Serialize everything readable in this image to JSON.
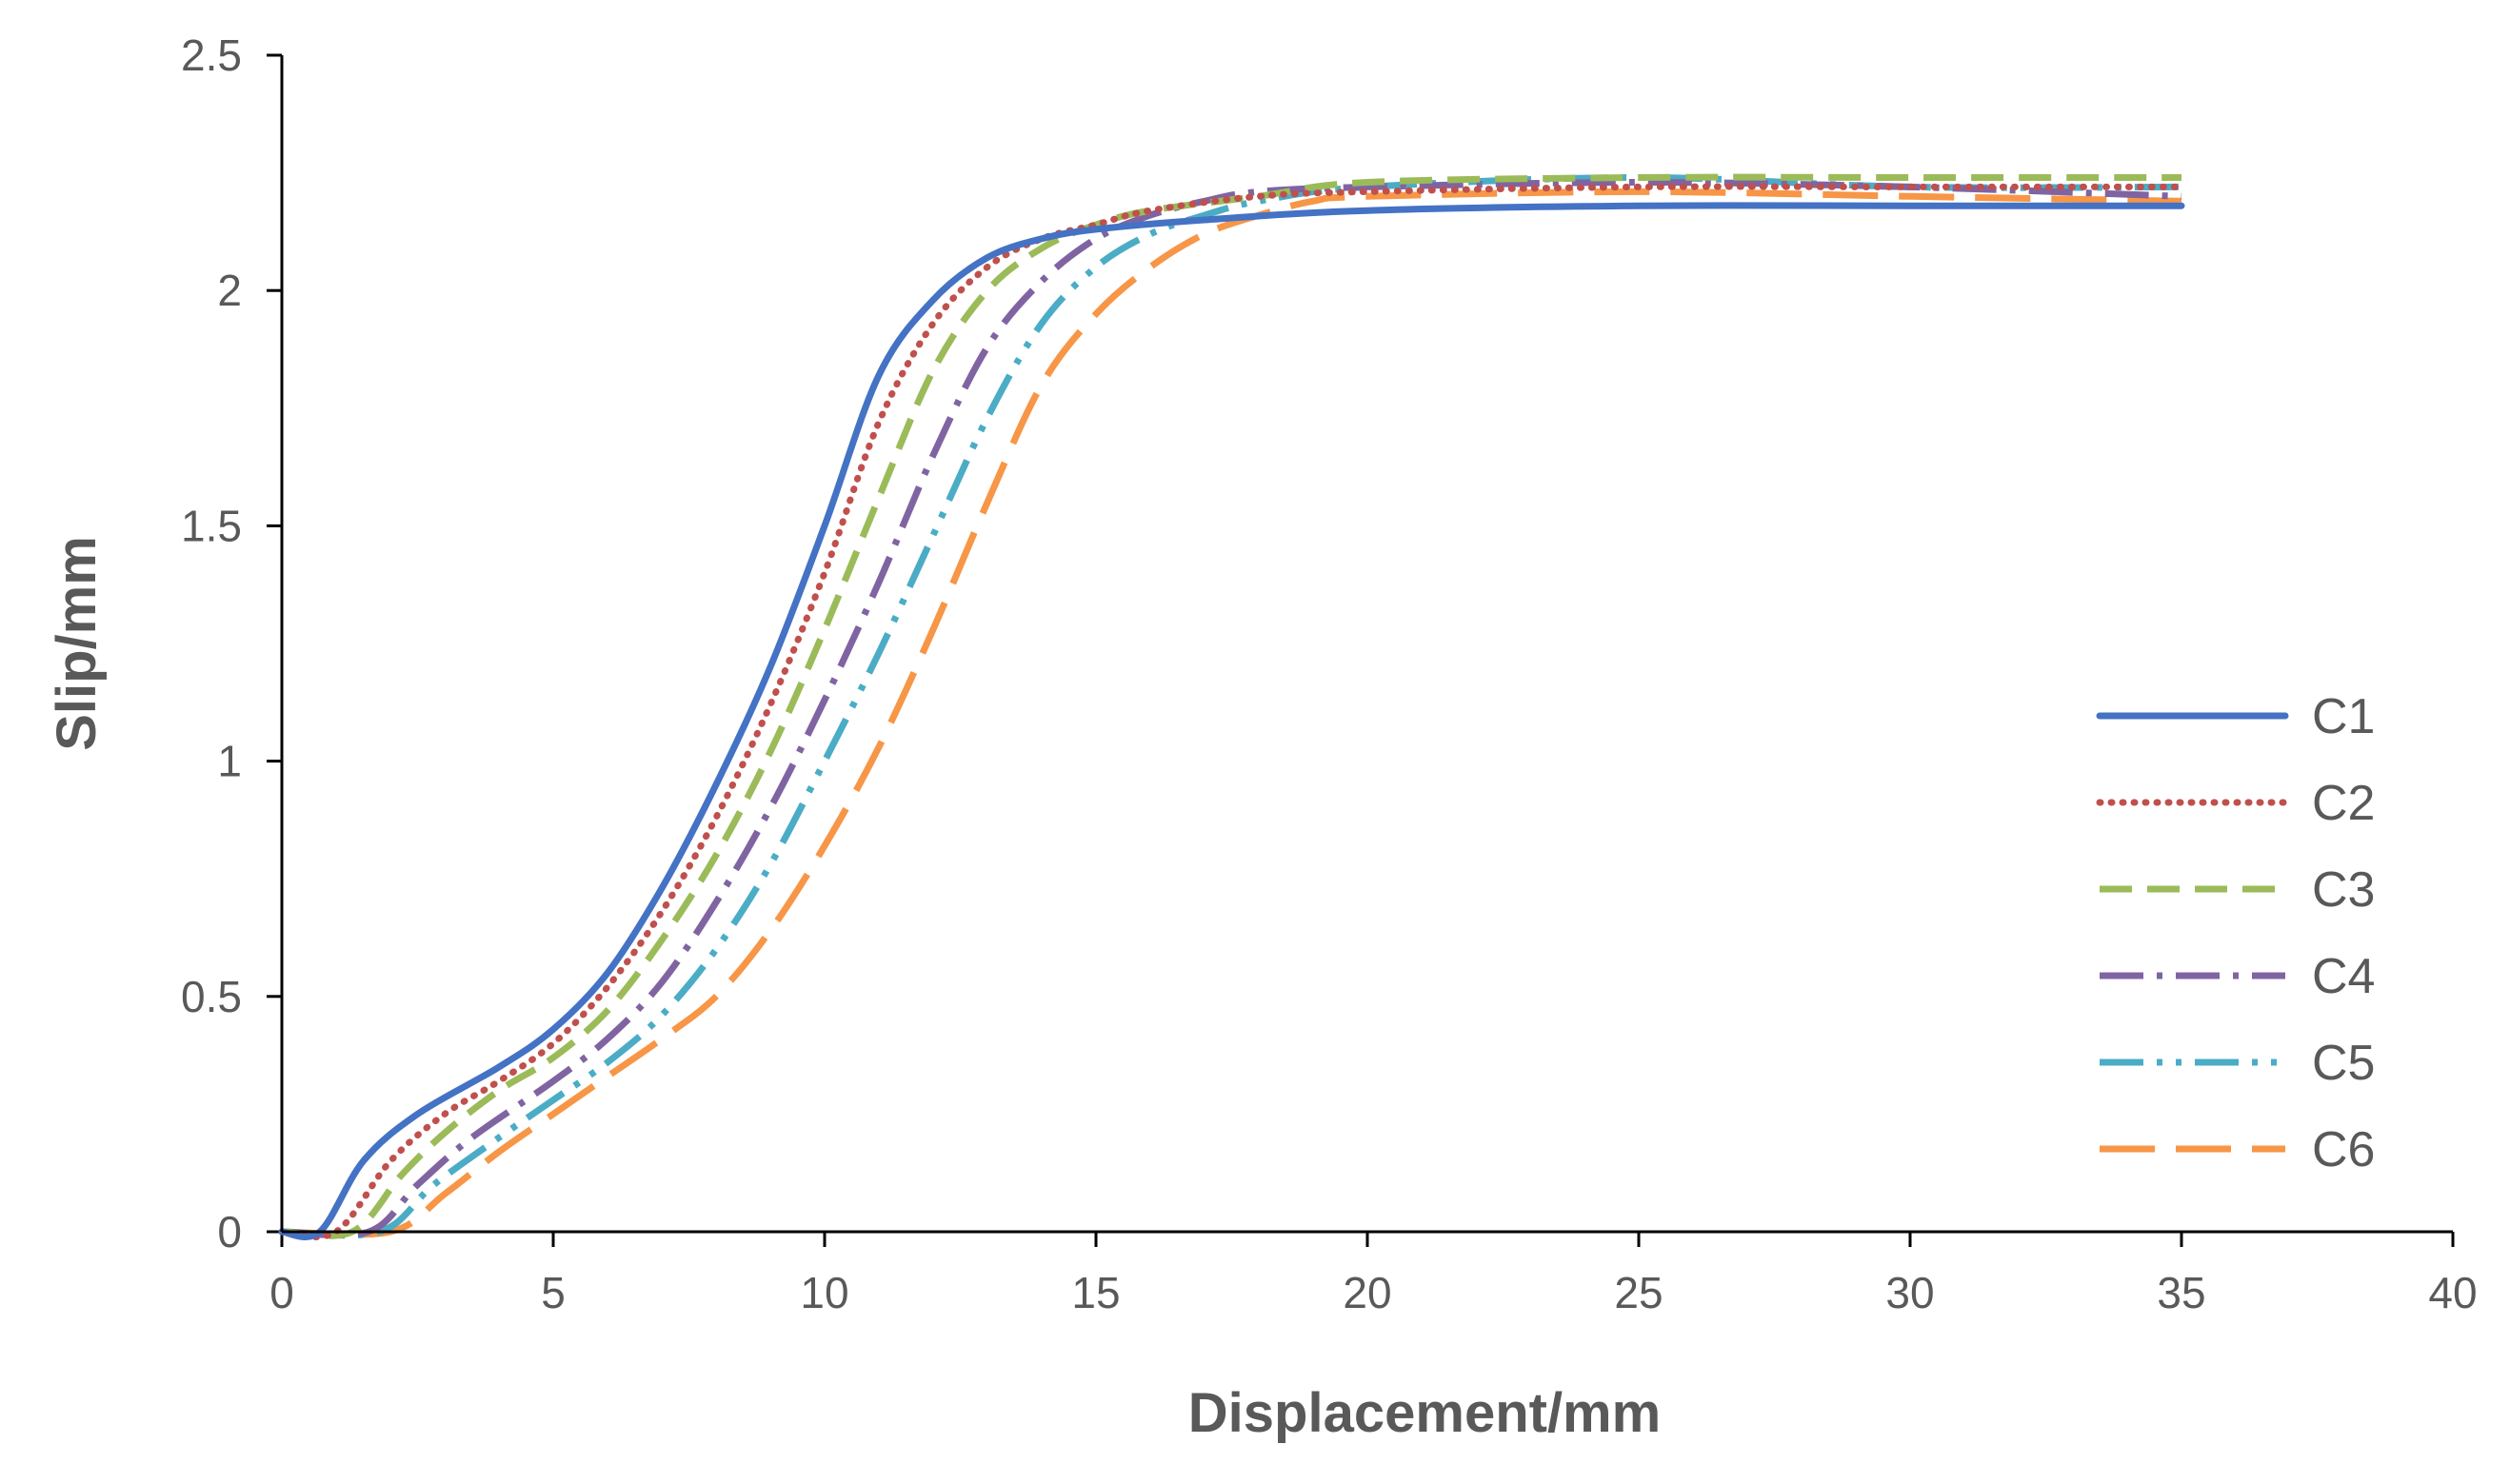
{
  "chart_data": {
    "type": "line",
    "title": "",
    "xlabel": "Displacement/mm",
    "ylabel": "Slip/mm",
    "xlim": [
      0,
      40
    ],
    "ylim": [
      0,
      2.5
    ],
    "xticks": [
      0,
      5,
      10,
      15,
      20,
      25,
      30,
      35,
      40
    ],
    "yticks": [
      0,
      0.5,
      1,
      1.5,
      2,
      2.5
    ],
    "xtick_labels": [
      "0",
      "5",
      "10",
      "15",
      "20",
      "25",
      "30",
      "35",
      "40"
    ],
    "ytick_labels": [
      "0",
      "0.5",
      "1",
      "1.5",
      "2",
      "2.5"
    ],
    "grid": false,
    "legend_position": "right",
    "series": [
      {
        "name": "C1",
        "color": "#4472C4",
        "dash": "solid",
        "points": [
          [
            0,
            0
          ],
          [
            0.7,
            0
          ],
          [
            1.5,
            0.15
          ],
          [
            2.5,
            0.25
          ],
          [
            4,
            0.35
          ],
          [
            5,
            0.43
          ],
          [
            6,
            0.55
          ],
          [
            7,
            0.73
          ],
          [
            8,
            0.95
          ],
          [
            9,
            1.2
          ],
          [
            10,
            1.5
          ],
          [
            11,
            1.82
          ],
          [
            12,
            1.98
          ],
          [
            13,
            2.07
          ],
          [
            14,
            2.11
          ],
          [
            15,
            2.13
          ],
          [
            17,
            2.15
          ],
          [
            20,
            2.17
          ],
          [
            25,
            2.18
          ],
          [
            30,
            2.18
          ],
          [
            35,
            2.18
          ]
        ]
      },
      {
        "name": "C2",
        "color": "#C0504D",
        "dash": "dotted",
        "points": [
          [
            0,
            0
          ],
          [
            1,
            0
          ],
          [
            2,
            0.15
          ],
          [
            3,
            0.25
          ],
          [
            4,
            0.32
          ],
          [
            5,
            0.4
          ],
          [
            6,
            0.52
          ],
          [
            7,
            0.68
          ],
          [
            8,
            0.88
          ],
          [
            9,
            1.12
          ],
          [
            10,
            1.4
          ],
          [
            11,
            1.72
          ],
          [
            12,
            1.93
          ],
          [
            13,
            2.05
          ],
          [
            14,
            2.11
          ],
          [
            15,
            2.14
          ],
          [
            16,
            2.17
          ],
          [
            18,
            2.2
          ],
          [
            20,
            2.21
          ],
          [
            25,
            2.22
          ],
          [
            30,
            2.22
          ],
          [
            35,
            2.22
          ]
        ]
      },
      {
        "name": "C3",
        "color": "#9BBB59",
        "dash": "dashed",
        "points": [
          [
            0,
            0
          ],
          [
            1.3,
            0
          ],
          [
            2.2,
            0.12
          ],
          [
            3,
            0.21
          ],
          [
            4,
            0.3
          ],
          [
            5,
            0.37
          ],
          [
            6,
            0.47
          ],
          [
            7,
            0.62
          ],
          [
            8,
            0.8
          ],
          [
            9,
            1.02
          ],
          [
            10,
            1.28
          ],
          [
            11,
            1.56
          ],
          [
            12,
            1.83
          ],
          [
            13,
            2.0
          ],
          [
            14,
            2.09
          ],
          [
            15,
            2.14
          ],
          [
            16,
            2.17
          ],
          [
            18,
            2.2
          ],
          [
            20,
            2.23
          ],
          [
            25,
            2.24
          ],
          [
            30,
            2.24
          ],
          [
            35,
            2.24
          ]
        ]
      },
      {
        "name": "C4",
        "color": "#8064A2",
        "dash": "dashdot",
        "points": [
          [
            0,
            0
          ],
          [
            1.6,
            0
          ],
          [
            2.5,
            0.1
          ],
          [
            3.5,
            0.2
          ],
          [
            5,
            0.32
          ],
          [
            6,
            0.41
          ],
          [
            7,
            0.53
          ],
          [
            8,
            0.7
          ],
          [
            9,
            0.9
          ],
          [
            10,
            1.13
          ],
          [
            11,
            1.38
          ],
          [
            12,
            1.65
          ],
          [
            13,
            1.88
          ],
          [
            14,
            2.02
          ],
          [
            15,
            2.11
          ],
          [
            16,
            2.16
          ],
          [
            17,
            2.19
          ],
          [
            18,
            2.21
          ],
          [
            20,
            2.22
          ],
          [
            25,
            2.23
          ],
          [
            30,
            2.22
          ],
          [
            35,
            2.2
          ]
        ]
      },
      {
        "name": "C5",
        "color": "#4BACC6",
        "dash": "dashdotdot",
        "points": [
          [
            0,
            0
          ],
          [
            1.8,
            0
          ],
          [
            2.8,
            0.1
          ],
          [
            4,
            0.2
          ],
          [
            5,
            0.28
          ],
          [
            6,
            0.36
          ],
          [
            7,
            0.46
          ],
          [
            8,
            0.6
          ],
          [
            9,
            0.78
          ],
          [
            10,
            1.0
          ],
          [
            11,
            1.23
          ],
          [
            12,
            1.48
          ],
          [
            13,
            1.73
          ],
          [
            14,
            1.93
          ],
          [
            15,
            2.05
          ],
          [
            16,
            2.12
          ],
          [
            17,
            2.16
          ],
          [
            18,
            2.19
          ],
          [
            20,
            2.22
          ],
          [
            25,
            2.24
          ],
          [
            30,
            2.22
          ],
          [
            35,
            2.22
          ]
        ]
      },
      {
        "name": "C6",
        "color": "#F79646",
        "dash": "longdash",
        "points": [
          [
            0,
            0
          ],
          [
            2,
            0
          ],
          [
            3,
            0.08
          ],
          [
            4,
            0.17
          ],
          [
            5,
            0.25
          ],
          [
            6,
            0.33
          ],
          [
            7,
            0.41
          ],
          [
            8,
            0.5
          ],
          [
            9,
            0.64
          ],
          [
            10,
            0.82
          ],
          [
            11,
            1.03
          ],
          [
            12,
            1.28
          ],
          [
            13,
            1.55
          ],
          [
            14,
            1.8
          ],
          [
            15,
            1.95
          ],
          [
            16,
            2.05
          ],
          [
            17,
            2.12
          ],
          [
            18,
            2.16
          ],
          [
            19,
            2.19
          ],
          [
            20,
            2.2
          ],
          [
            25,
            2.21
          ],
          [
            30,
            2.2
          ],
          [
            35,
            2.19
          ]
        ]
      }
    ]
  }
}
